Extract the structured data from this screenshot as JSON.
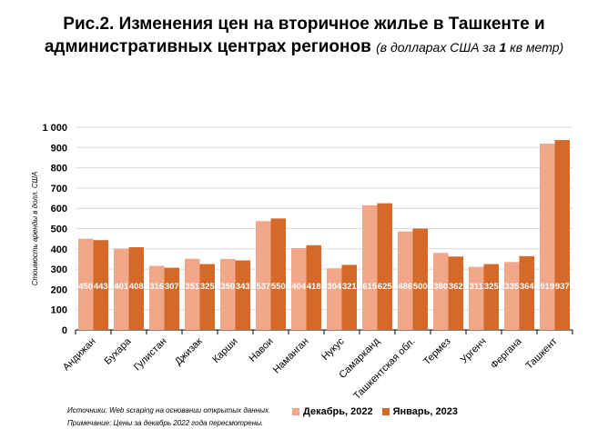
{
  "title": {
    "main_line1": "Рис.2. Изменения цен на вторичное жилье в Ташкенте и",
    "main_line2": "административных центрах регионов",
    "sub_prefix": "(в долларах США за ",
    "sub_bold": "1",
    "sub_suffix": " кв метр)"
  },
  "colors": {
    "dec": "#F1A788",
    "jan": "#D5692A",
    "grid": "#D9D9D9",
    "axis": "#000000"
  },
  "chart_data": {
    "type": "bar",
    "ylabel": "Стоимость аренды в долл. США",
    "ylim": [
      0,
      1000
    ],
    "yticks": [
      0,
      100,
      200,
      300,
      400,
      500,
      600,
      700,
      800,
      900,
      1000
    ],
    "ytick_labels": [
      "0",
      "100",
      "200",
      "300",
      "400",
      "500",
      "600",
      "700",
      "800",
      "900",
      "1 000"
    ],
    "grid": true,
    "categories": [
      "Андижан",
      "Бухара",
      "Гулистан",
      "Джизак",
      "Карши",
      "Навои",
      "Наманган",
      "Нукус",
      "Самарканд",
      "Ташкентская обл.",
      "Термез",
      "Ургенч",
      "Фергана",
      "Ташкент"
    ],
    "series": [
      {
        "name": "Декабрь, 2022",
        "values": [
          450,
          401,
          316,
          351,
          350,
          537,
          404,
          304,
          615,
          486,
          380,
          311,
          335,
          919
        ]
      },
      {
        "name": "Январь, 2023",
        "values": [
          443,
          408,
          307,
          325,
          343,
          550,
          418,
          321,
          625,
          500,
          362,
          325,
          364,
          937
        ]
      }
    ],
    "legend_position": "bottom-right"
  },
  "footnotes": {
    "source": "Источники: Web scraping на основании открытых данных.",
    "note": "Примечание: Цены за декабрь 2022 года пересмотрены."
  }
}
